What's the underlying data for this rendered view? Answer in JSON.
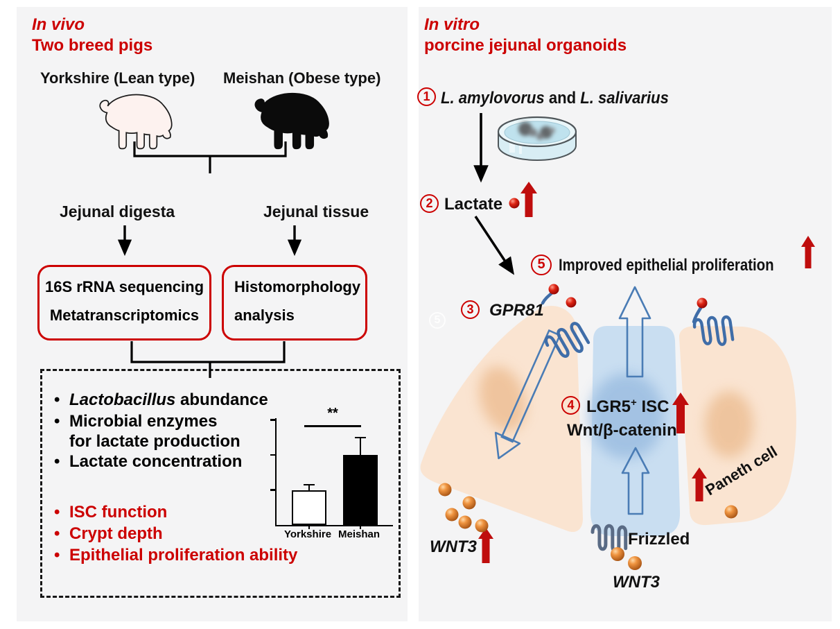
{
  "left_panel": {
    "title": "In vivo",
    "subtitle": "Two breed pigs",
    "pig_labels": [
      "Yorkshire (Lean type)",
      "Meishan (Obese type)"
    ],
    "sample_labels": [
      "Jejunal digesta",
      "Jejunal tissue"
    ],
    "method_box_1": {
      "line1": "16S rRNA sequencing",
      "line2": "Metatranscriptomics"
    },
    "method_box_2": {
      "line1": "Histomorphology",
      "line2": "analysis"
    },
    "bullet_char": "•",
    "findings_black": {
      "item1_italic": "Lactobacillus",
      "item1_rest": " abundance",
      "item2_line1": "Microbial enzymes",
      "item2_line2": "for lactate production",
      "item3": "Lactate concentration"
    },
    "findings_red": [
      "ISC function",
      "Crypt depth",
      "Epithelial proliferation ability"
    ]
  },
  "chart_data": {
    "type": "bar",
    "title": "",
    "xlabel": "",
    "ylabel": "",
    "categories": [
      "Yorkshire",
      "Meishan"
    ],
    "values": [
      1.0,
      2.0
    ],
    "error_bars": [
      0.15,
      0.5
    ],
    "bar_colors": [
      "#ffffff",
      "#000000"
    ],
    "significance_label": "**",
    "ylim": [
      0,
      3.05
    ],
    "yticks": [
      1,
      2,
      3
    ],
    "grid": false,
    "legend": "none"
  },
  "right_panel": {
    "title": "In vitro",
    "subtitle": "porcine jejunal organoids",
    "step1": {
      "num": "1",
      "species1": "L. amylovorus",
      "connector": " and ",
      "species2": "L. salivarius"
    },
    "step2": {
      "num": "2",
      "label": "Lactate"
    },
    "step3": {
      "num": "3",
      "label": "GPR81"
    },
    "step4": {
      "num": "4",
      "gene": "LGR5",
      "sup": "+",
      "rest": " ISC",
      "line2": "Wnt/β-catenin"
    },
    "step5": {
      "num": "5",
      "label": "Improved epithelial proliferation"
    },
    "wnt3_left": "WNT3",
    "wnt3_bottom": "WNT3",
    "frizzled": "Frizzled",
    "paneth": "Paneth cell"
  },
  "colors": {
    "panel_bg": "#f4f4f5",
    "accent_red": "#cc0000",
    "arrow_red": "#bf0d0d",
    "outline_blue": "#4a7cb5",
    "cell_peach": "#fae4d1",
    "cell_blue": "#c9def1",
    "frizzled_gray": "#5a6b85"
  }
}
